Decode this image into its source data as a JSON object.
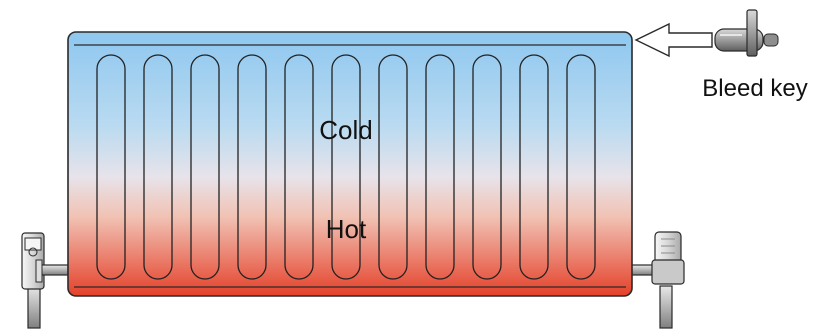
{
  "diagram": {
    "labels": {
      "cold": "Cold",
      "hot": "Hot",
      "bleed_key": "Bleed key"
    },
    "colors": {
      "cold_top": "#8ec7ef",
      "cold_mid": "#cfe4f3",
      "hot_mid": "#f1c2b4",
      "hot_bottom": "#e4412a",
      "outline": "#2a2a2a",
      "valve_body": "#d8d8d8",
      "pipe": "#a9a9a9"
    },
    "icons": [
      "radiator-icon",
      "bleed-key-icon",
      "arrow-icon",
      "valve-icon"
    ]
  }
}
